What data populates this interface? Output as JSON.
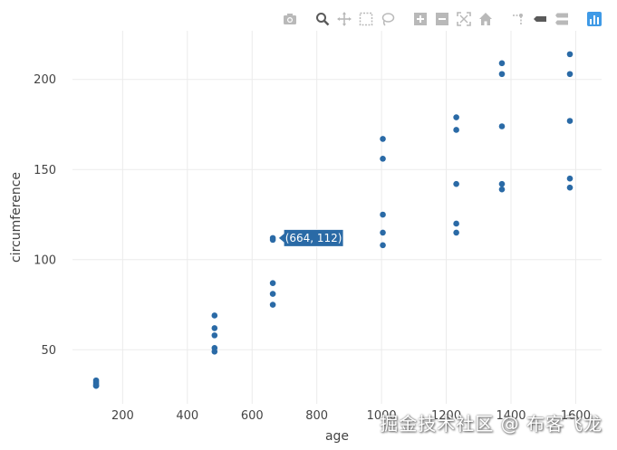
{
  "chart_data": {
    "type": "scatter",
    "xlabel": "age",
    "ylabel": "circumference",
    "xlim": [
      45,
      1680
    ],
    "ylim": [
      20,
      227
    ],
    "x_ticks": [
      200,
      400,
      600,
      800,
      1000,
      1200,
      1400,
      1600
    ],
    "y_ticks": [
      50,
      100,
      150,
      200
    ],
    "grid": true,
    "marker_color": "#2a6aa6",
    "series": [
      {
        "points": [
          [
            118,
            30
          ],
          [
            118,
            31
          ],
          [
            118,
            32
          ],
          [
            118,
            33
          ],
          [
            118,
            30
          ],
          [
            484,
            49
          ],
          [
            484,
            51
          ],
          [
            484,
            58
          ],
          [
            484,
            62
          ],
          [
            484,
            69
          ],
          [
            664,
            75
          ],
          [
            664,
            81
          ],
          [
            664,
            87
          ],
          [
            664,
            111
          ],
          [
            664,
            112
          ],
          [
            1004,
            108
          ],
          [
            1004,
            115
          ],
          [
            1004,
            125
          ],
          [
            1004,
            156
          ],
          [
            1004,
            167
          ],
          [
            1231,
            115
          ],
          [
            1231,
            120
          ],
          [
            1231,
            142
          ],
          [
            1231,
            172
          ],
          [
            1231,
            179
          ],
          [
            1372,
            139
          ],
          [
            1372,
            142
          ],
          [
            1372,
            174
          ],
          [
            1372,
            203
          ],
          [
            1372,
            209
          ],
          [
            1582,
            140
          ],
          [
            1582,
            145
          ],
          [
            1582,
            177
          ],
          [
            1582,
            203
          ],
          [
            1582,
            214
          ]
        ]
      }
    ],
    "hover": {
      "text": "(664, 112)",
      "x": 664,
      "y": 112,
      "color": "#2a6aa6"
    }
  },
  "modebar": {
    "icons": [
      "camera-icon",
      "zoom-icon",
      "pan-icon",
      "box-select-icon",
      "lasso-select-icon",
      "zoom-in-icon",
      "zoom-out-icon",
      "autoscale-icon",
      "reset-axes-icon",
      "spike-lines-icon",
      "hover-closest-icon",
      "hover-compare-icon",
      "plotly-logo-icon"
    ],
    "active": "zoom-icon",
    "icon_color": "#b9b9b9",
    "active_color": "#5a5a5a",
    "logo_color": "#3f9ae6"
  },
  "watermark": "掘金技术社区 @ 布客飞龙"
}
